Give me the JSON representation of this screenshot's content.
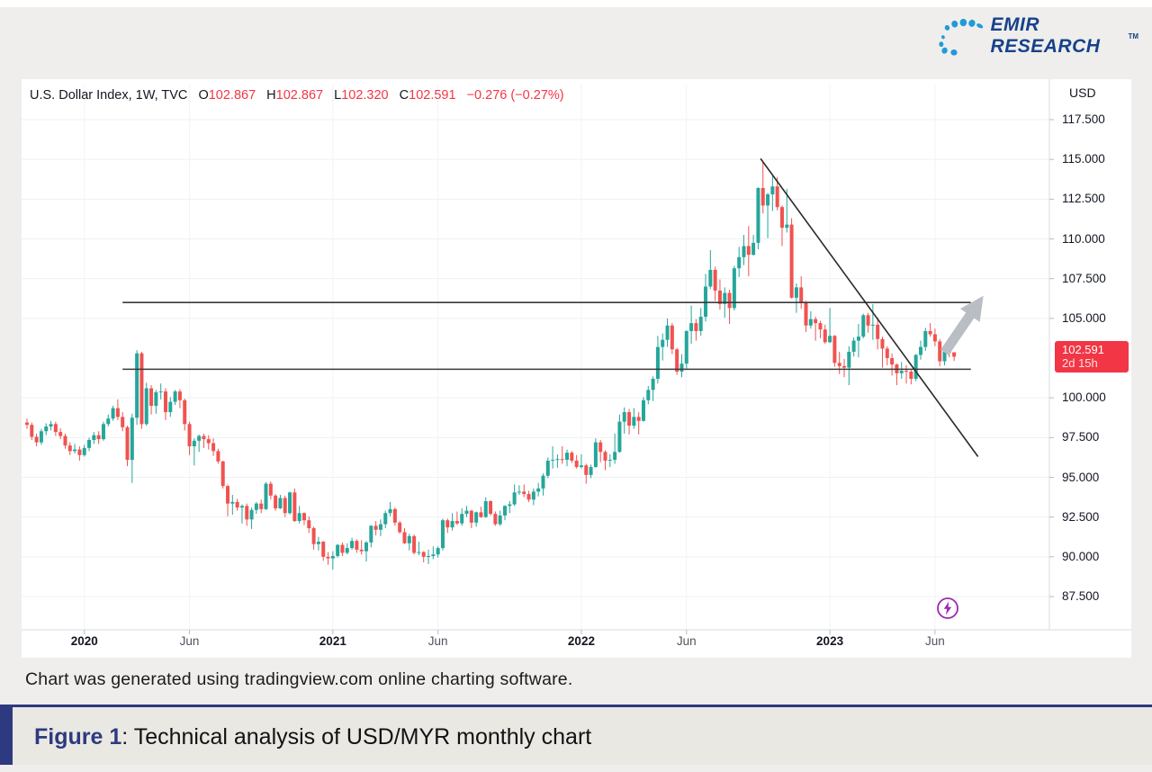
{
  "logo": {
    "text": "EMIR RESEARCH",
    "tm": "TM"
  },
  "header": {
    "symbol": "U.S. Dollar Index, 1W, TVC",
    "o_key": "O",
    "o_val": "102.867",
    "h_key": "H",
    "h_val": "102.867",
    "l_key": "L",
    "l_val": "102.320",
    "c_key": "C",
    "c_val": "102.591",
    "change": "−0.276 (−0.27%)"
  },
  "chart_data": {
    "type": "candlestick",
    "title": "U.S. Dollar Index, 1W, TVC",
    "ylim": [
      86.2,
      118.2
    ],
    "grid": true,
    "colors": {
      "up": "#26a69a",
      "down": "#ef5350",
      "accent_red": "#f23645",
      "trendline": "#2b2b2b",
      "arrow": "#b9bdc4",
      "lightning": "#9c27b0"
    },
    "price_axis": {
      "title": "USD",
      "values": [
        117.5,
        115.0,
        112.5,
        110.0,
        107.5,
        105.0,
        100.0,
        97.5,
        95.0,
        92.5,
        90.0,
        87.5
      ],
      "ticks": [
        "117.500",
        "115.000",
        "112.500",
        "110.000",
        "107.500",
        "105.000",
        "100.000",
        "97.500",
        "95.000",
        "92.500",
        "90.000",
        "87.500"
      ]
    },
    "time_axis": {
      "ticks": [
        {
          "label": "2020",
          "index": 12,
          "bold": true
        },
        {
          "label": "Jun",
          "index": 34,
          "bold": false
        },
        {
          "label": "2021",
          "index": 64,
          "bold": true
        },
        {
          "label": "Jun",
          "index": 86,
          "bold": false
        },
        {
          "label": "2022",
          "index": 116,
          "bold": true
        },
        {
          "label": "Jun",
          "index": 138,
          "bold": false
        },
        {
          "label": "2023",
          "index": 168,
          "bold": true
        },
        {
          "label": "Jun",
          "index": 190,
          "bold": false
        }
      ]
    },
    "last_price": {
      "label": "102.591",
      "countdown": "2d 15h",
      "value": 102.591
    },
    "annotations": {
      "resistance": {
        "price": 106.0,
        "from_index": 20,
        "to_index": 197.5
      },
      "support": {
        "price": 101.8,
        "from_index": 20,
        "to_index": 197.5
      },
      "downtrend_line": {
        "from_index": 153.5,
        "from_price": 115.05,
        "to_index": 199,
        "to_price": 96.3
      },
      "breakout_arrow": {
        "from_index": 192,
        "from_price": 102.85,
        "to_index": 198.6,
        "to_price": 105.75
      }
    },
    "candles": [
      [
        98.45,
        98.7,
        98.05,
        98.3
      ],
      [
        98.3,
        98.45,
        97.35,
        97.55
      ],
      [
        97.55,
        97.75,
        96.95,
        97.2
      ],
      [
        97.2,
        98.05,
        97.05,
        97.9
      ],
      [
        97.9,
        98.4,
        97.65,
        98.2
      ],
      [
        98.2,
        98.55,
        97.95,
        98.35
      ],
      [
        98.35,
        98.5,
        97.6,
        97.85
      ],
      [
        97.85,
        98.1,
        97.4,
        97.6
      ],
      [
        97.6,
        97.75,
        96.8,
        97.0
      ],
      [
        97.0,
        97.2,
        96.4,
        96.65
      ],
      [
        96.65,
        97.1,
        96.5,
        96.75
      ],
      [
        96.75,
        96.95,
        96.05,
        96.4
      ],
      [
        96.4,
        97.05,
        96.3,
        96.85
      ],
      [
        96.85,
        97.5,
        96.65,
        97.35
      ],
      [
        97.35,
        97.85,
        97.1,
        97.65
      ],
      [
        97.65,
        97.9,
        97.1,
        97.4
      ],
      [
        97.4,
        98.5,
        97.3,
        98.35
      ],
      [
        98.35,
        98.95,
        98.2,
        98.7
      ],
      [
        98.7,
        99.5,
        98.55,
        99.35
      ],
      [
        99.35,
        99.9,
        98.6,
        98.8
      ],
      [
        98.8,
        99.1,
        97.9,
        98.15
      ],
      [
        98.15,
        98.25,
        95.7,
        96.1
      ],
      [
        96.1,
        99.0,
        94.65,
        98.75
      ],
      [
        98.75,
        103.0,
        98.3,
        102.8
      ],
      [
        102.8,
        102.9,
        98.05,
        98.35
      ],
      [
        98.35,
        100.95,
        98.25,
        100.6
      ],
      [
        100.6,
        100.8,
        98.95,
        99.5
      ],
      [
        99.5,
        100.5,
        99.0,
        100.35
      ],
      [
        100.35,
        100.9,
        99.9,
        100.4
      ],
      [
        100.4,
        100.6,
        98.6,
        99.1
      ],
      [
        99.1,
        100.05,
        98.8,
        99.75
      ],
      [
        99.75,
        100.5,
        99.55,
        100.4
      ],
      [
        100.4,
        100.55,
        99.35,
        99.85
      ],
      [
        99.85,
        99.95,
        97.95,
        98.35
      ],
      [
        98.35,
        98.5,
        96.4,
        96.95
      ],
      [
        96.95,
        97.45,
        95.75,
        97.3
      ],
      [
        97.3,
        97.7,
        96.6,
        97.6
      ],
      [
        97.6,
        97.75,
        96.85,
        97.4
      ],
      [
        97.4,
        97.65,
        96.75,
        97.15
      ],
      [
        97.15,
        97.45,
        96.35,
        96.65
      ],
      [
        96.65,
        96.8,
        95.85,
        96.0
      ],
      [
        96.0,
        96.05,
        94.3,
        94.45
      ],
      [
        94.45,
        94.55,
        92.55,
        93.35
      ],
      [
        93.35,
        93.9,
        92.65,
        93.45
      ],
      [
        93.45,
        93.65,
        92.9,
        93.1
      ],
      [
        93.1,
        93.3,
        92.1,
        93.2
      ],
      [
        93.2,
        93.35,
        91.95,
        92.35
      ],
      [
        92.35,
        93.1,
        91.75,
        92.95
      ],
      [
        92.95,
        93.45,
        92.7,
        93.35
      ],
      [
        93.35,
        93.6,
        92.75,
        93.0
      ],
      [
        93.0,
        94.7,
        92.95,
        94.6
      ],
      [
        94.6,
        94.75,
        93.6,
        93.85
      ],
      [
        93.85,
        93.95,
        92.9,
        93.05
      ],
      [
        93.05,
        93.9,
        93.0,
        93.7
      ],
      [
        93.7,
        93.85,
        92.5,
        92.75
      ],
      [
        92.75,
        94.1,
        92.65,
        94.05
      ],
      [
        94.05,
        94.3,
        92.2,
        92.25
      ],
      [
        92.25,
        93.2,
        92.1,
        92.75
      ],
      [
        92.75,
        92.8,
        92.0,
        92.3
      ],
      [
        92.3,
        92.55,
        91.5,
        91.8
      ],
      [
        91.8,
        91.9,
        90.45,
        90.8
      ],
      [
        90.8,
        91.25,
        90.4,
        90.95
      ],
      [
        90.95,
        91.0,
        89.75,
        90.0
      ],
      [
        90.0,
        90.3,
        89.5,
        89.9
      ],
      [
        89.9,
        90.35,
        89.2,
        90.05
      ],
      [
        90.05,
        90.8,
        89.95,
        90.75
      ],
      [
        90.75,
        90.9,
        90.05,
        90.25
      ],
      [
        90.25,
        90.85,
        90.15,
        90.55
      ],
      [
        90.55,
        91.2,
        90.45,
        91.0
      ],
      [
        91.0,
        91.1,
        90.25,
        90.45
      ],
      [
        90.45,
        91.05,
        90.15,
        90.35
      ],
      [
        90.35,
        91.0,
        89.7,
        90.9
      ],
      [
        90.9,
        92.0,
        90.6,
        91.95
      ],
      [
        91.95,
        92.25,
        91.35,
        91.7
      ],
      [
        91.7,
        92.35,
        91.3,
        92.05
      ],
      [
        92.05,
        92.9,
        91.8,
        92.75
      ],
      [
        92.75,
        93.45,
        92.55,
        93.0
      ],
      [
        93.0,
        93.1,
        91.95,
        92.15
      ],
      [
        92.15,
        92.25,
        91.45,
        91.55
      ],
      [
        91.55,
        91.8,
        90.8,
        90.85
      ],
      [
        90.85,
        91.45,
        90.4,
        91.3
      ],
      [
        91.3,
        91.4,
        90.15,
        90.25
      ],
      [
        90.25,
        90.95,
        90.1,
        90.3
      ],
      [
        90.3,
        90.35,
        89.65,
        90.0
      ],
      [
        90.0,
        90.45,
        89.55,
        90.05
      ],
      [
        90.05,
        90.65,
        89.85,
        90.15
      ],
      [
        90.15,
        90.65,
        89.95,
        90.55
      ],
      [
        90.55,
        92.4,
        90.4,
        92.3
      ],
      [
        92.3,
        92.4,
        91.5,
        91.85
      ],
      [
        91.85,
        92.75,
        91.65,
        92.25
      ],
      [
        92.25,
        92.85,
        92.0,
        92.1
      ],
      [
        92.1,
        93.05,
        91.95,
        92.7
      ],
      [
        92.7,
        93.2,
        92.5,
        92.9
      ],
      [
        92.9,
        92.95,
        91.8,
        92.15
      ],
      [
        92.15,
        92.85,
        91.9,
        92.8
      ],
      [
        92.8,
        93.15,
        92.45,
        92.5
      ],
      [
        92.5,
        93.75,
        92.45,
        93.5
      ],
      [
        93.5,
        93.55,
        92.6,
        92.7
      ],
      [
        92.7,
        92.85,
        91.95,
        92.05
      ],
      [
        92.05,
        92.9,
        91.95,
        92.6
      ],
      [
        92.6,
        93.25,
        92.3,
        93.2
      ],
      [
        93.2,
        93.5,
        92.75,
        93.3
      ],
      [
        93.3,
        94.55,
        93.2,
        94.05
      ],
      [
        94.05,
        94.5,
        93.9,
        94.1
      ],
      [
        94.1,
        94.55,
        93.75,
        93.95
      ],
      [
        93.95,
        94.15,
        93.45,
        93.6
      ],
      [
        93.6,
        94.3,
        93.25,
        94.1
      ],
      [
        94.1,
        94.65,
        93.8,
        94.3
      ],
      [
        94.3,
        95.25,
        93.85,
        95.1
      ],
      [
        95.1,
        96.25,
        94.95,
        96.05
      ],
      [
        96.05,
        96.95,
        95.55,
        96.1
      ],
      [
        96.1,
        96.45,
        95.6,
        96.15
      ],
      [
        96.15,
        96.95,
        95.85,
        96.1
      ],
      [
        96.1,
        96.75,
        95.7,
        96.55
      ],
      [
        96.55,
        96.65,
        95.9,
        96.05
      ],
      [
        96.05,
        96.4,
        95.55,
        95.65
      ],
      [
        95.65,
        96.45,
        95.55,
        95.75
      ],
      [
        95.75,
        95.85,
        94.6,
        95.15
      ],
      [
        95.15,
        95.8,
        94.95,
        95.65
      ],
      [
        95.65,
        97.45,
        95.6,
        97.2
      ],
      [
        97.2,
        97.35,
        95.95,
        96.6
      ],
      [
        96.6,
        96.7,
        95.45,
        96.05
      ],
      [
        96.05,
        96.45,
        95.65,
        96.1
      ],
      [
        96.1,
        97.75,
        95.85,
        96.6
      ],
      [
        96.6,
        98.95,
        96.55,
        98.5
      ],
      [
        98.5,
        99.4,
        97.75,
        99.1
      ],
      [
        99.1,
        99.3,
        97.7,
        98.25
      ],
      [
        98.25,
        99.35,
        98.05,
        98.8
      ],
      [
        98.8,
        99.1,
        97.7,
        98.55
      ],
      [
        98.55,
        100.05,
        98.5,
        99.85
      ],
      [
        99.85,
        100.75,
        99.6,
        100.5
      ],
      [
        100.5,
        101.35,
        99.8,
        101.2
      ],
      [
        101.2,
        103.9,
        100.9,
        103.2
      ],
      [
        103.2,
        104.05,
        102.35,
        103.65
      ],
      [
        103.65,
        105.0,
        103.2,
        104.55
      ],
      [
        104.55,
        104.7,
        102.75,
        103.05
      ],
      [
        103.05,
        103.15,
        101.45,
        101.65
      ],
      [
        101.65,
        102.75,
        101.3,
        102.15
      ],
      [
        102.15,
        104.25,
        101.85,
        104.2
      ],
      [
        104.2,
        105.8,
        103.4,
        104.7
      ],
      [
        104.7,
        104.95,
        103.6,
        104.2
      ],
      [
        104.2,
        105.65,
        103.9,
        105.1
      ],
      [
        105.1,
        107.8,
        104.8,
        107.0
      ],
      [
        107.0,
        109.3,
        106.85,
        108.05
      ],
      [
        108.05,
        108.25,
        106.1,
        106.75
      ],
      [
        106.75,
        107.45,
        105.55,
        105.9
      ],
      [
        105.9,
        106.95,
        105.05,
        106.6
      ],
      [
        106.6,
        106.8,
        104.65,
        105.65
      ],
      [
        105.65,
        108.3,
        105.5,
        108.15
      ],
      [
        108.15,
        109.5,
        107.6,
        108.85
      ],
      [
        108.85,
        110.25,
        108.35,
        109.55
      ],
      [
        109.55,
        110.8,
        107.65,
        109.0
      ],
      [
        109.0,
        110.25,
        108.95,
        109.75
      ],
      [
        109.75,
        113.25,
        109.35,
        113.2
      ],
      [
        113.2,
        114.8,
        111.6,
        112.1
      ],
      [
        112.1,
        112.9,
        110.05,
        112.8
      ],
      [
        112.8,
        113.95,
        111.75,
        113.3
      ],
      [
        113.3,
        113.9,
        111.8,
        112.0
      ],
      [
        112.0,
        112.1,
        109.55,
        110.7
      ],
      [
        110.7,
        113.15,
        110.4,
        110.9
      ],
      [
        110.9,
        111.3,
        106.25,
        106.3
      ],
      [
        106.3,
        107.2,
        105.35,
        106.95
      ],
      [
        106.95,
        107.65,
        105.6,
        106.0
      ],
      [
        106.0,
        106.1,
        104.15,
        104.55
      ],
      [
        104.55,
        105.45,
        104.35,
        104.95
      ],
      [
        104.95,
        105.1,
        103.6,
        104.7
      ],
      [
        104.7,
        104.85,
        103.75,
        104.3
      ],
      [
        104.3,
        104.6,
        103.4,
        103.5
      ],
      [
        103.5,
        105.65,
        103.45,
        103.9
      ],
      [
        103.9,
        103.95,
        101.95,
        102.2
      ],
      [
        102.2,
        102.9,
        101.5,
        102.0
      ],
      [
        102.0,
        102.45,
        101.3,
        101.9
      ],
      [
        101.9,
        103.25,
        100.8,
        102.9
      ],
      [
        102.9,
        103.8,
        102.6,
        103.6
      ],
      [
        103.6,
        104.65,
        102.55,
        103.85
      ],
      [
        103.85,
        105.3,
        103.75,
        105.2
      ],
      [
        105.2,
        105.35,
        104.1,
        104.55
      ],
      [
        104.55,
        105.9,
        103.65,
        104.6
      ],
      [
        104.6,
        105.05,
        103.05,
        103.7
      ],
      [
        103.7,
        103.85,
        101.9,
        103.1
      ],
      [
        103.1,
        103.25,
        102.05,
        102.5
      ],
      [
        102.5,
        102.8,
        101.4,
        102.1
      ],
      [
        102.1,
        102.15,
        100.8,
        101.55
      ],
      [
        101.55,
        102.25,
        101.2,
        101.7
      ],
      [
        101.7,
        102.05,
        100.9,
        101.65
      ],
      [
        101.65,
        101.75,
        100.85,
        101.2
      ],
      [
        101.2,
        102.75,
        101.05,
        102.7
      ],
      [
        102.7,
        103.6,
        102.4,
        103.2
      ],
      [
        103.2,
        104.4,
        102.95,
        104.2
      ],
      [
        104.2,
        104.7,
        103.85,
        104.0
      ],
      [
        104.0,
        104.35,
        103.25,
        103.55
      ],
      [
        103.55,
        103.7,
        102.0,
        102.3
      ],
      [
        102.3,
        103.15,
        102.05,
        102.9
      ],
      [
        102.9,
        103.5,
        102.55,
        102.87
      ],
      [
        102.867,
        102.867,
        102.32,
        102.591
      ]
    ]
  },
  "footer": {
    "note": "Chart was generated using tradingview.com online charting software."
  },
  "caption": {
    "label": "Figure 1",
    "text": ": Technical analysis of USD/MYR monthly chart"
  }
}
